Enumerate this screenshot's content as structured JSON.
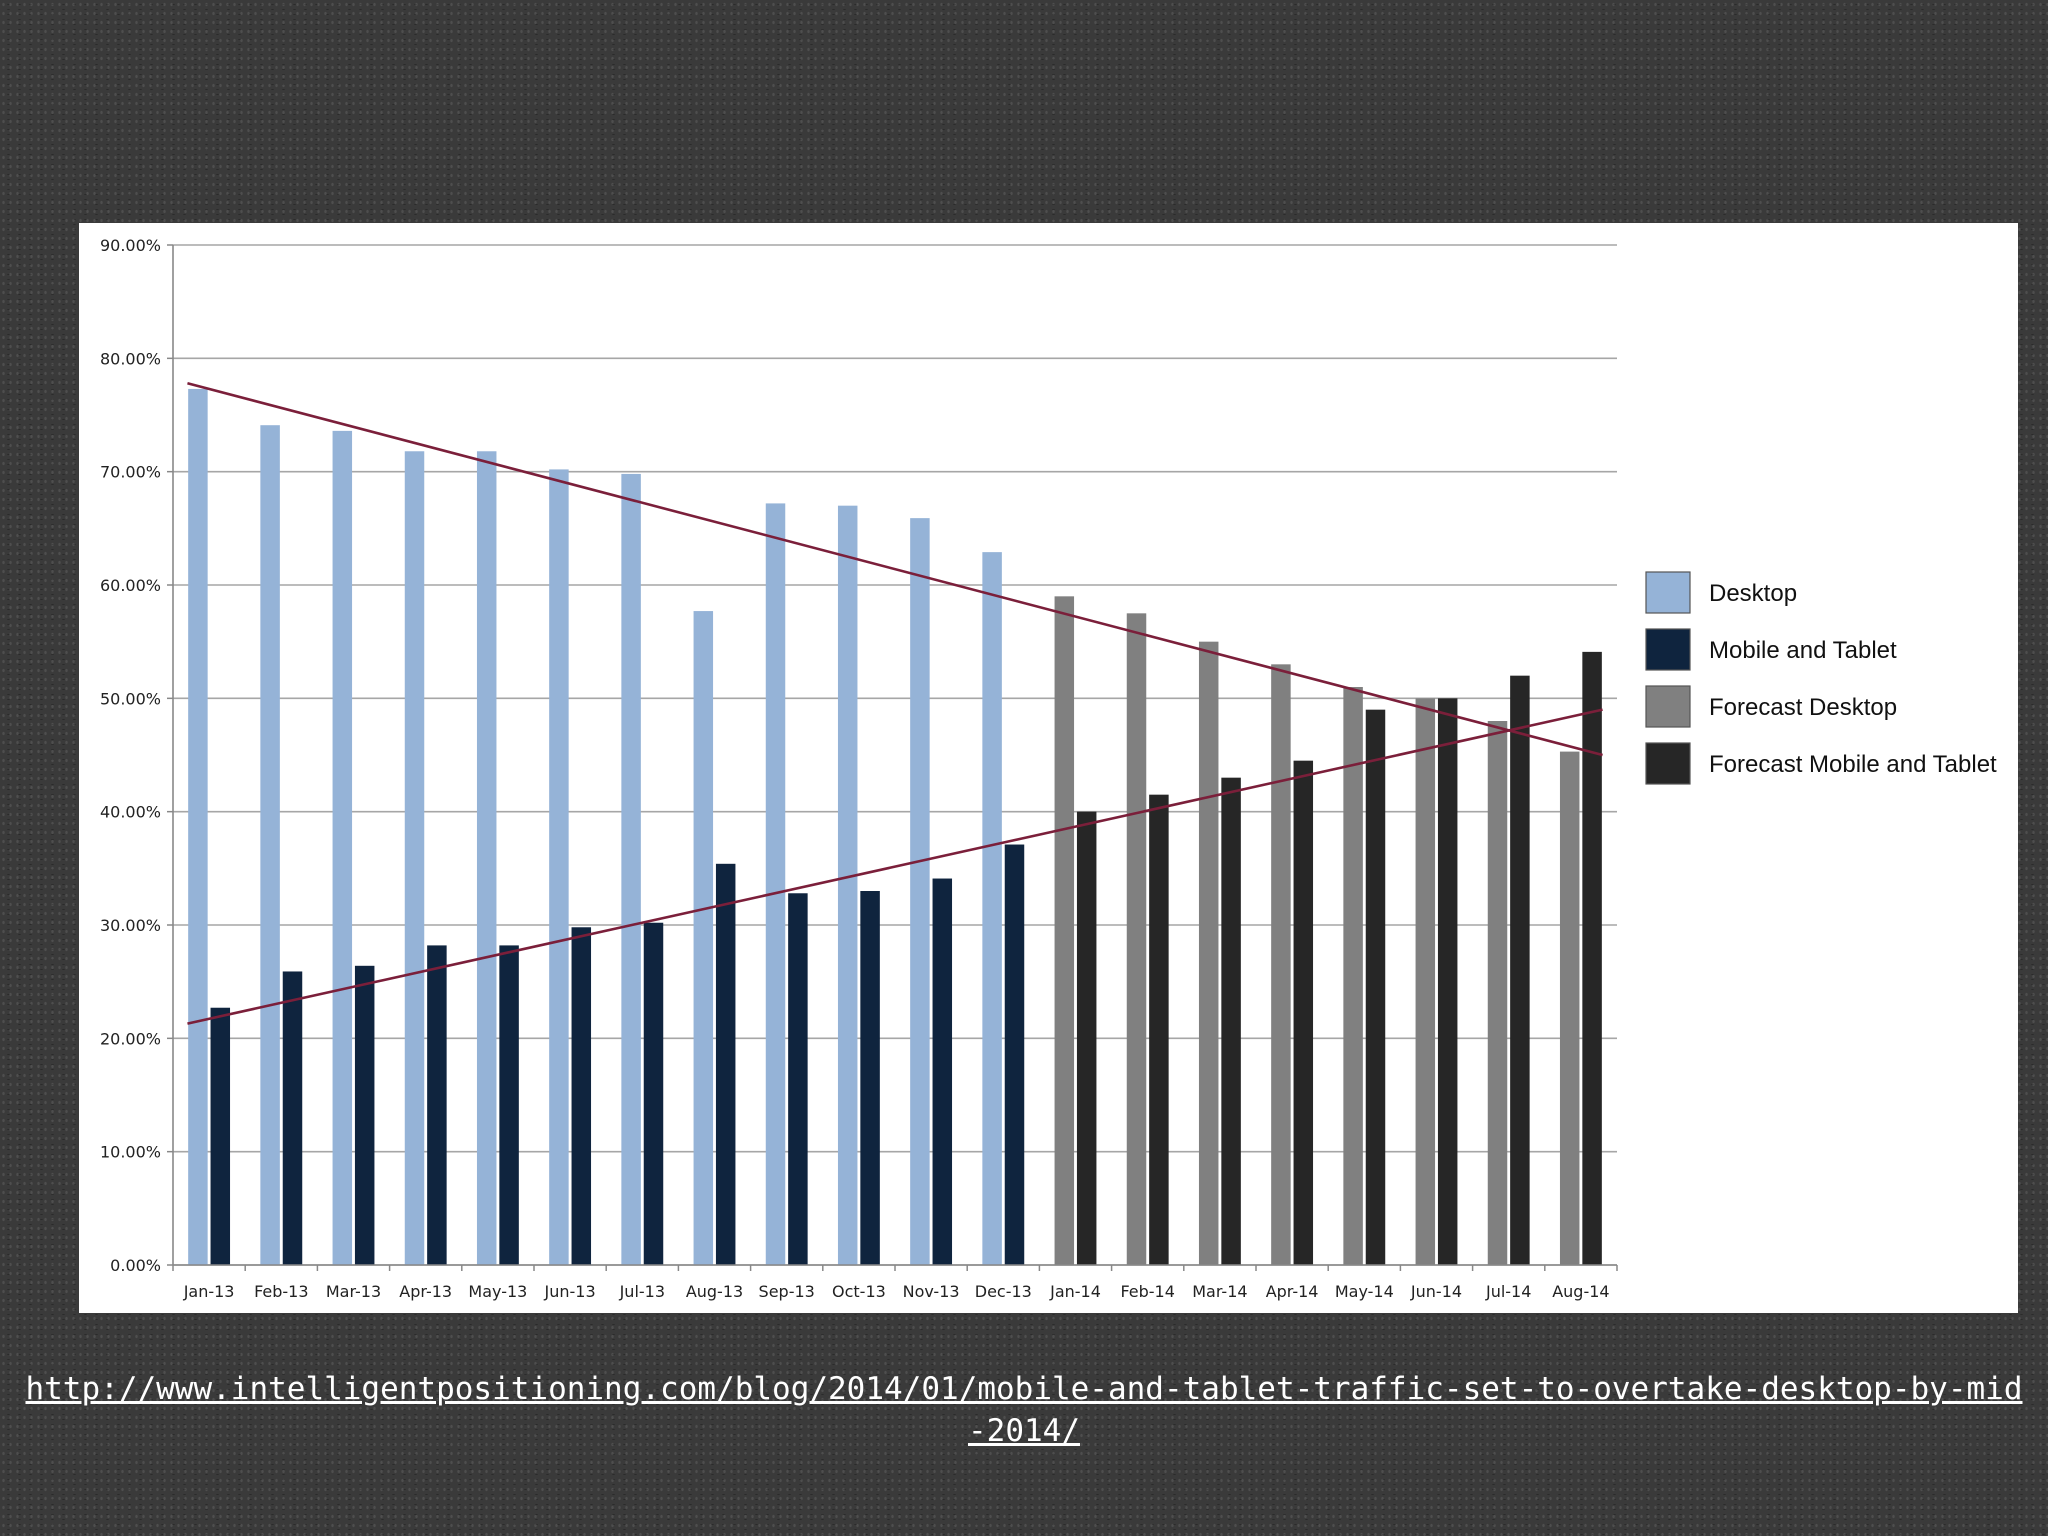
{
  "source_link": "http://www.intelligentpositioning.com/blog/2014/01/mobile-and-tablet-traffic-set-to-overtake-desktop-by-mid-2014/",
  "chart_data": {
    "type": "bar",
    "title": "",
    "xlabel": "",
    "ylabel": "",
    "ylim": [
      0,
      90
    ],
    "y_ticks": [
      "0.00%",
      "10.00%",
      "20.00%",
      "30.00%",
      "40.00%",
      "50.00%",
      "60.00%",
      "70.00%",
      "80.00%",
      "90.00%"
    ],
    "grid": true,
    "legend_position": "right",
    "categories": [
      "Jan-13",
      "Feb-13",
      "Mar-13",
      "Apr-13",
      "May-13",
      "Jun-13",
      "Jul-13",
      "Aug-13",
      "Sep-13",
      "Oct-13",
      "Nov-13",
      "Dec-13",
      "Jan-14",
      "Feb-14",
      "Mar-14",
      "Apr-14",
      "May-14",
      "Jun-14",
      "Jul-14",
      "Aug-14"
    ],
    "series": [
      {
        "name": "Desktop",
        "color": "#95b3d7",
        "values": [
          77.3,
          74.1,
          73.6,
          71.8,
          71.8,
          70.2,
          69.8,
          57.7,
          67.2,
          67.0,
          65.9,
          62.9,
          null,
          null,
          null,
          null,
          null,
          null,
          null,
          null
        ]
      },
      {
        "name": "Mobile and Tablet",
        "color": "#0f243e",
        "values": [
          22.7,
          25.9,
          26.4,
          28.2,
          28.2,
          29.8,
          30.2,
          35.4,
          32.8,
          33.0,
          34.1,
          37.1,
          null,
          null,
          null,
          null,
          null,
          null,
          null,
          null
        ]
      },
      {
        "name": "Forecast Desktop",
        "color": "#808080",
        "values": [
          null,
          null,
          null,
          null,
          null,
          null,
          null,
          null,
          null,
          null,
          null,
          null,
          59.0,
          57.5,
          55.0,
          53.0,
          51.0,
          50.0,
          48.0,
          45.3
        ]
      },
      {
        "name": "Forecast Mobile and Tablet",
        "color": "#262626",
        "values": [
          null,
          null,
          null,
          null,
          null,
          null,
          null,
          null,
          null,
          null,
          null,
          null,
          40.0,
          41.5,
          43.0,
          44.5,
          49.0,
          50.0,
          52.0,
          54.1
        ]
      }
    ],
    "trendlines": [
      {
        "color": "#7b1f3a",
        "from": {
          "category": "Jan-13",
          "value": 77.8
        },
        "to": {
          "category": "Aug-14",
          "value": 45.0
        }
      },
      {
        "color": "#7b1f3a",
        "from": {
          "category": "Jan-13",
          "value": 21.3
        },
        "to": {
          "category": "Aug-14",
          "value": 49.0
        }
      }
    ]
  }
}
